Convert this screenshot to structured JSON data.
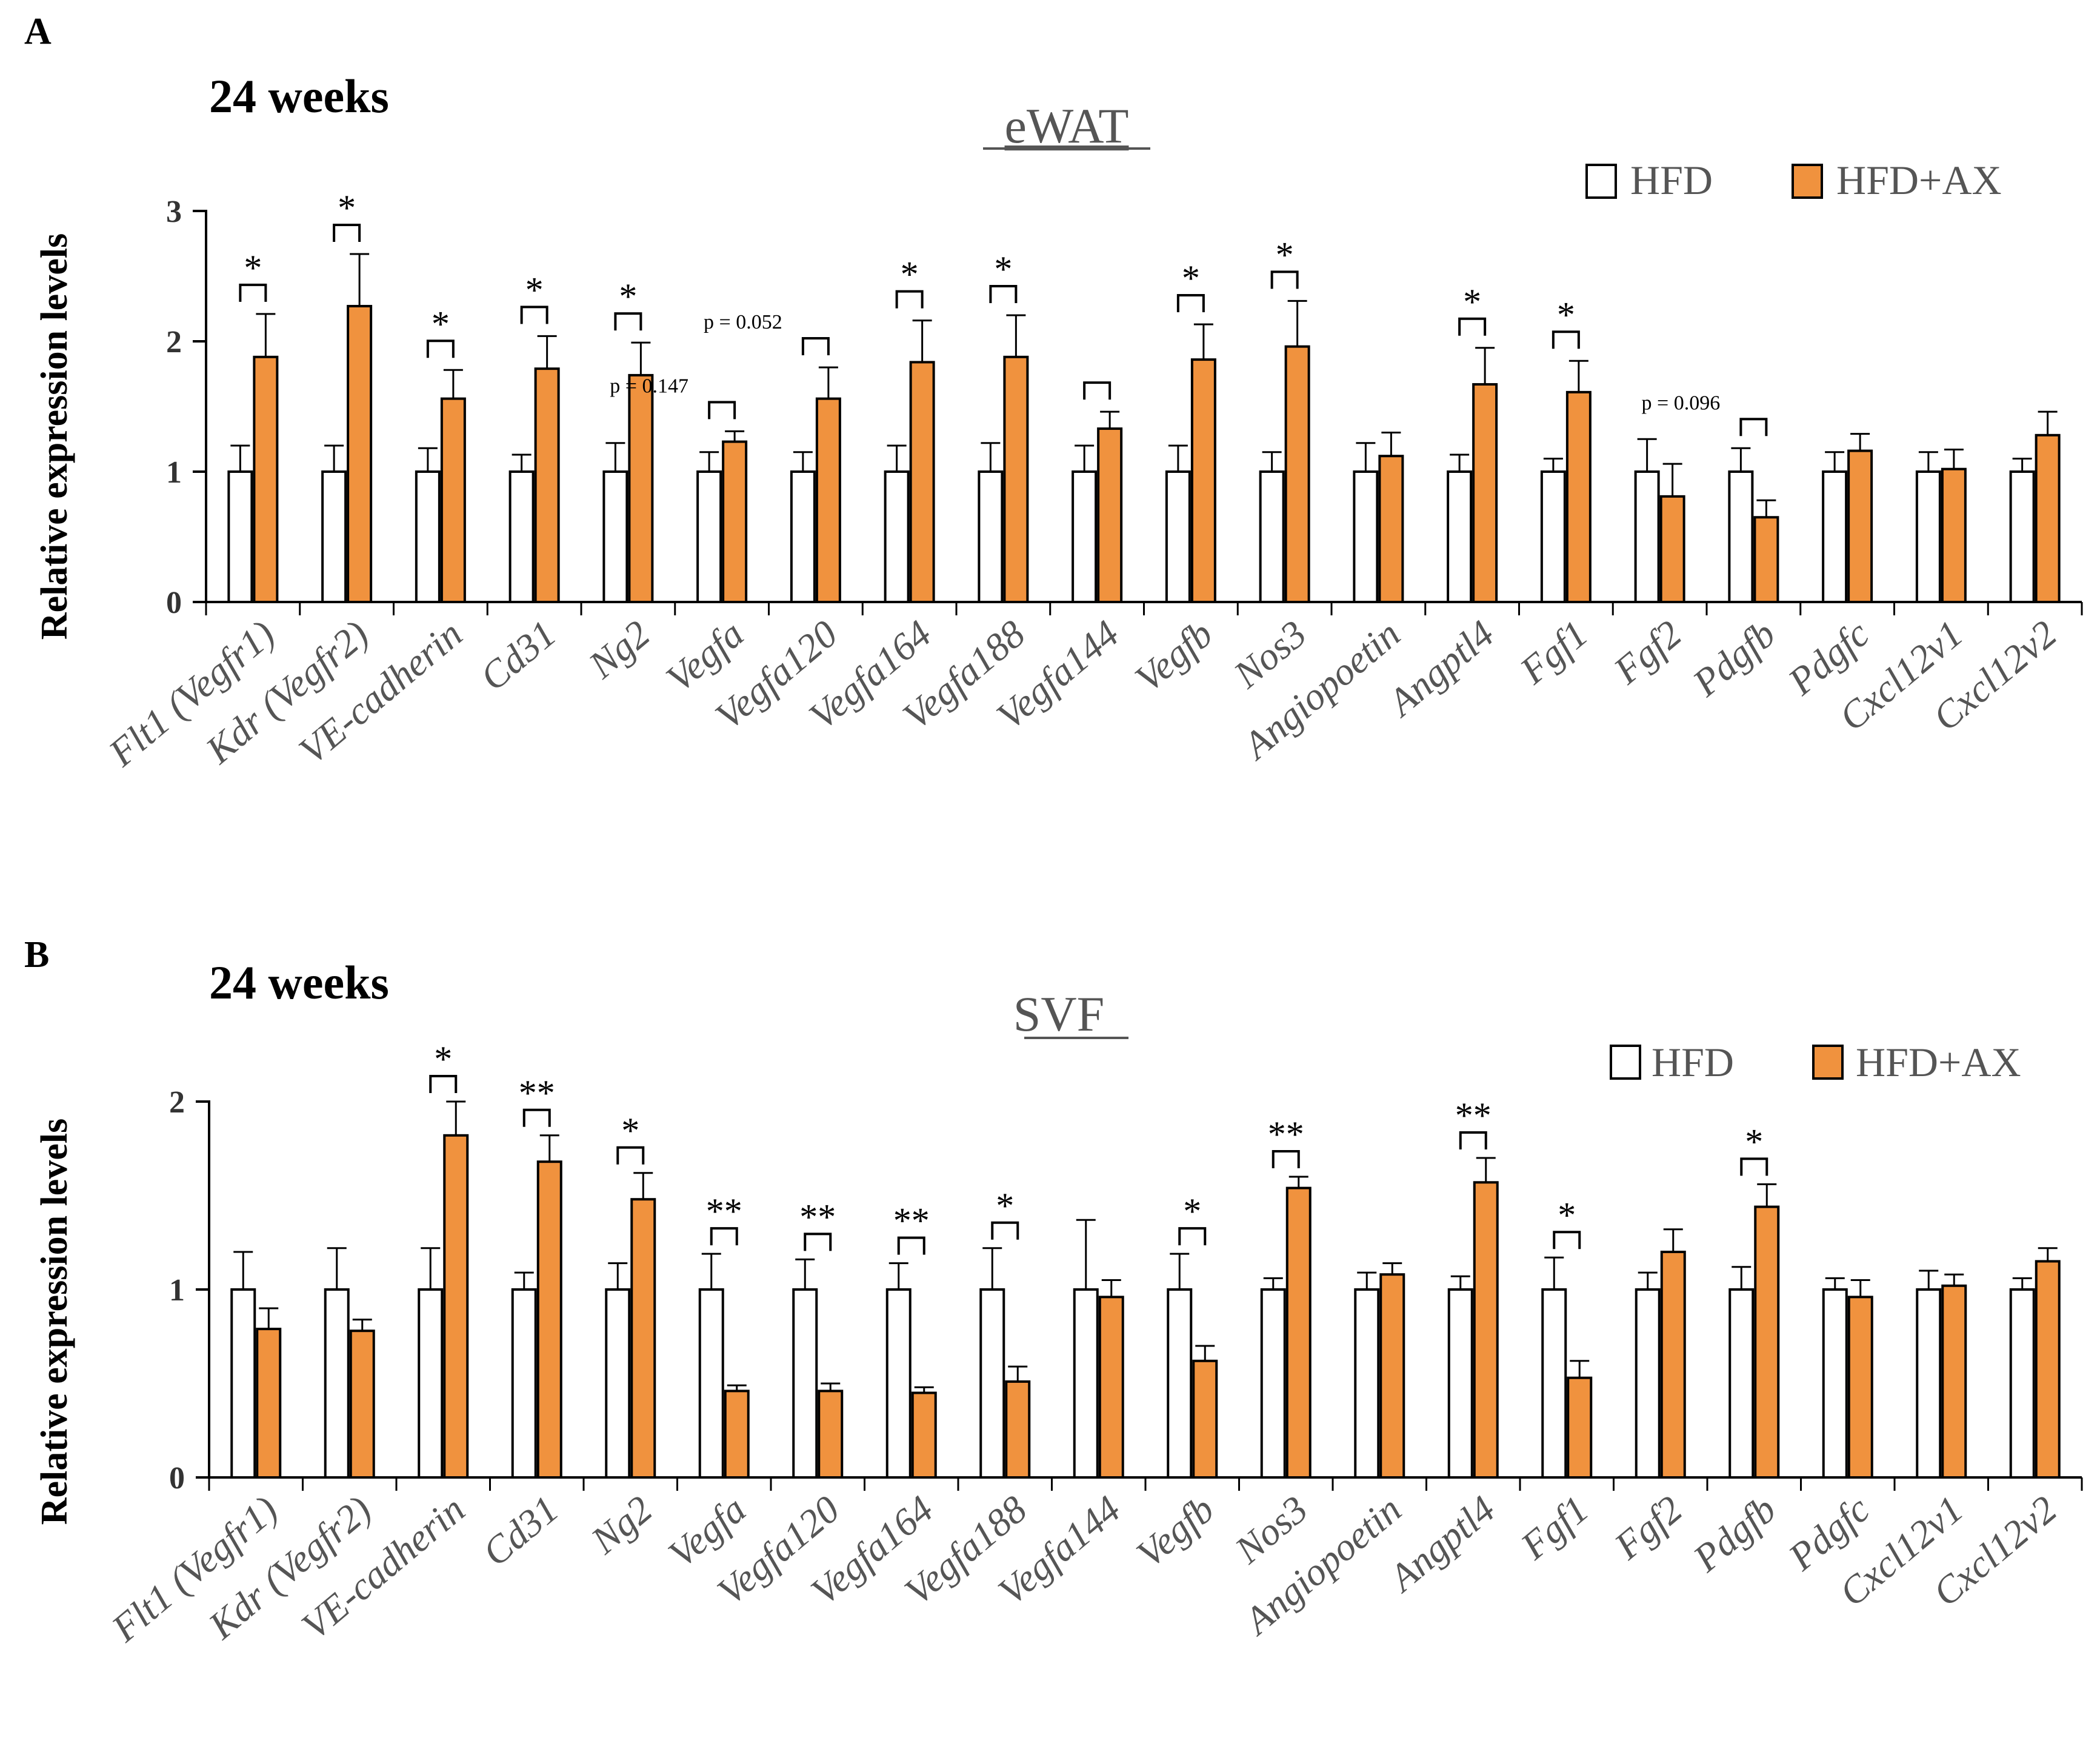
{
  "colors": {
    "hfd_fill": "#ffffff",
    "hfd_stroke": "#000000",
    "ax_fill": "#F0923E",
    "ax_stroke": "#000000"
  },
  "chart_data": [
    {
      "panel": "A",
      "time_label": "24 weeks",
      "title": "eWAT",
      "type": "bar",
      "ylabel": "Relative expression levels",
      "ylim": [
        0,
        3
      ],
      "yticks": [
        0,
        1,
        2,
        3
      ],
      "legend": [
        "HFD",
        "HFD+AX"
      ],
      "legend_position": "top-right",
      "categories": [
        "Flt1 (Vegfr1)",
        "Kdr (Vegfr2)",
        "VE-cadherin",
        "Cd31",
        "Ng2",
        "Vegfa",
        "Vegfa120",
        "Vegfa164",
        "Vegfa188",
        "Vegfa144",
        "Vegfb",
        "Nos3",
        "Angiopoetin",
        "Angptl4",
        "Fgf1",
        "Fgf2",
        "Pdgfb",
        "Pdgfc",
        "Cxcl12v1",
        "Cxcl12v2"
      ],
      "series": [
        {
          "name": "HFD",
          "values": [
            1,
            1,
            1,
            1,
            1,
            1,
            1,
            1,
            1,
            1,
            1,
            1,
            1,
            1,
            1,
            1,
            1,
            1,
            1,
            1
          ],
          "errors": [
            0.2,
            0.2,
            0.18,
            0.13,
            0.22,
            0.15,
            0.15,
            0.2,
            0.22,
            0.2,
            0.2,
            0.15,
            0.22,
            0.13,
            0.1,
            0.25,
            0.18,
            0.15,
            0.15,
            0.1
          ]
        },
        {
          "name": "HFD+AX",
          "values": [
            1.88,
            2.27,
            1.56,
            1.79,
            1.74,
            1.23,
            1.56,
            1.84,
            1.88,
            1.33,
            1.86,
            1.96,
            1.12,
            1.67,
            1.61,
            0.81,
            0.65,
            1.16,
            1.02,
            1.28
          ],
          "errors": [
            0.33,
            0.4,
            0.22,
            0.25,
            0.25,
            0.08,
            0.24,
            0.32,
            0.32,
            0.13,
            0.27,
            0.35,
            0.18,
            0.28,
            0.24,
            0.25,
            0.13,
            0.13,
            0.15,
            0.18
          ]
        }
      ],
      "significance": [
        "*",
        "*",
        "*",
        "*",
        "*",
        "p = 0.147",
        "p = 0.052",
        "*",
        "*",
        "",
        "*",
        "*",
        null,
        "*",
        "*",
        null,
        "p = 0.096",
        null,
        null,
        null
      ]
    },
    {
      "panel": "B",
      "time_label": "24 weeks",
      "title": "SVF",
      "type": "bar",
      "ylabel": "Relative expression levels",
      "ylim": [
        0,
        2
      ],
      "yticks": [
        0,
        1,
        2
      ],
      "legend": [
        "HFD",
        "HFD+AX"
      ],
      "legend_position": "top-right",
      "categories": [
        "Flt1 (Vegfr1)",
        "Kdr (Vegfr2)",
        "VE-cadherin",
        "Cd31",
        "Ng2",
        "Vegfa",
        "Vegfa120",
        "Vegfa164",
        "Vegfa188",
        "Vegfa144",
        "Vegfb",
        "Nos3",
        "Angiopoetin",
        "Angptl4",
        "Fgf1",
        "Fgf2",
        "Pdgfb",
        "Pdgfc",
        "Cxcl12v1",
        "Cxcl12v2"
      ],
      "series": [
        {
          "name": "HFD",
          "values": [
            1,
            1,
            1,
            1,
            1,
            1,
            1,
            1,
            1,
            1,
            1,
            1,
            1,
            1,
            1,
            1,
            1,
            1,
            1,
            1
          ],
          "errors": [
            0.2,
            0.22,
            0.22,
            0.09,
            0.14,
            0.19,
            0.16,
            0.14,
            0.22,
            0.37,
            0.19,
            0.06,
            0.09,
            0.07,
            0.17,
            0.09,
            0.12,
            0.06,
            0.1,
            0.06
          ]
        },
        {
          "name": "HFD+AX",
          "values": [
            0.79,
            0.78,
            1.82,
            1.68,
            1.48,
            0.46,
            0.46,
            0.45,
            0.51,
            0.96,
            0.62,
            1.54,
            1.08,
            1.57,
            0.53,
            1.2,
            1.44,
            0.96,
            1.02,
            1.15
          ],
          "errors": [
            0.11,
            0.06,
            0.18,
            0.14,
            0.14,
            0.03,
            0.04,
            0.03,
            0.08,
            0.09,
            0.08,
            0.06,
            0.06,
            0.13,
            0.09,
            0.12,
            0.12,
            0.09,
            0.06,
            0.07
          ]
        }
      ],
      "significance": [
        null,
        null,
        "*",
        "**",
        "*",
        "**",
        "**",
        "**",
        "*",
        null,
        "*",
        "**",
        null,
        "**",
        "*",
        null,
        "*",
        null,
        null,
        null
      ]
    }
  ]
}
